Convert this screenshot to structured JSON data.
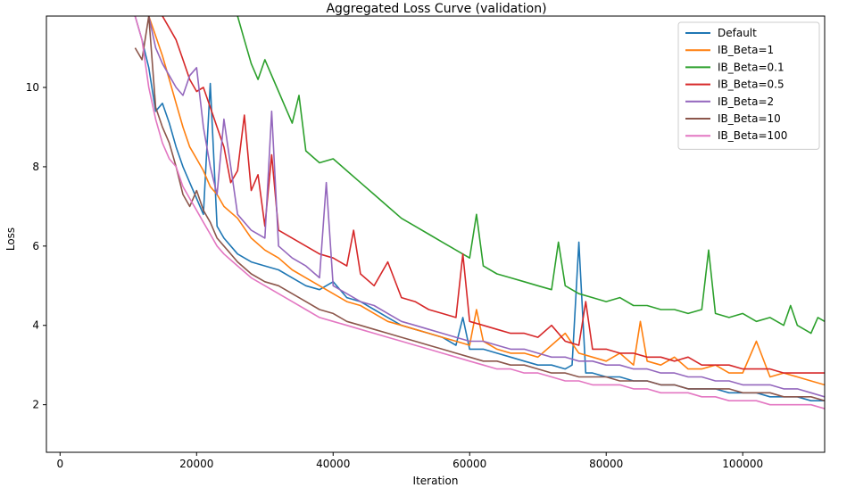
{
  "chart_data": {
    "type": "line",
    "title": "Aggregated Loss Curve (validation)",
    "xlabel": "Iteration",
    "ylabel": "Loss",
    "xlim": [
      -2000,
      112000
    ],
    "ylim": [
      0.8,
      11.8
    ],
    "xticks": [
      0,
      20000,
      40000,
      60000,
      80000,
      100000
    ],
    "yticks": [
      2,
      4,
      6,
      8,
      10
    ],
    "grid": false,
    "legend_position": "top-right",
    "series": [
      {
        "name": "Default",
        "color": "#1f77b4",
        "x": [
          11000,
          12000,
          13000,
          14000,
          15000,
          16000,
          17000,
          18000,
          19000,
          20000,
          21000,
          22000,
          23000,
          24000,
          26000,
          28000,
          30000,
          32000,
          34000,
          36000,
          38000,
          40000,
          42000,
          44000,
          46000,
          48000,
          50000,
          52000,
          54000,
          56000,
          58000,
          59000,
          60000,
          62000,
          64000,
          66000,
          68000,
          70000,
          72000,
          74000,
          75000,
          76000,
          77000,
          78000,
          80000,
          82000,
          84000,
          86000,
          88000,
          90000,
          92000,
          94000,
          96000,
          98000,
          100000,
          102000,
          104000,
          106000,
          108000,
          110000,
          112000
        ],
        "y": [
          11.8,
          11.2,
          10.5,
          9.4,
          9.6,
          9.1,
          8.5,
          8.0,
          7.6,
          7.2,
          6.8,
          10.1,
          6.5,
          6.2,
          5.8,
          5.6,
          5.5,
          5.4,
          5.2,
          5.0,
          4.9,
          5.1,
          4.7,
          4.6,
          4.4,
          4.2,
          4.0,
          3.9,
          3.8,
          3.7,
          3.5,
          4.2,
          3.4,
          3.4,
          3.3,
          3.2,
          3.1,
          3.0,
          3.0,
          2.9,
          3.0,
          6.1,
          2.8,
          2.8,
          2.7,
          2.7,
          2.6,
          2.6,
          2.5,
          2.5,
          2.4,
          2.4,
          2.4,
          2.3,
          2.3,
          2.3,
          2.2,
          2.2,
          2.2,
          2.1,
          2.1
        ]
      },
      {
        "name": "IB_Beta=1",
        "color": "#ff7f0e",
        "x": [
          13000,
          14000,
          15000,
          16000,
          17000,
          18000,
          19000,
          20000,
          21000,
          22000,
          23000,
          24000,
          26000,
          28000,
          30000,
          32000,
          34000,
          36000,
          38000,
          40000,
          42000,
          44000,
          46000,
          48000,
          50000,
          52000,
          54000,
          56000,
          58000,
          60000,
          61000,
          62000,
          64000,
          66000,
          68000,
          70000,
          72000,
          74000,
          76000,
          78000,
          80000,
          82000,
          84000,
          85000,
          86000,
          88000,
          90000,
          92000,
          94000,
          96000,
          98000,
          100000,
          102000,
          104000,
          106000,
          108000,
          110000,
          112000
        ],
        "y": [
          11.8,
          11.3,
          10.8,
          10.2,
          9.6,
          9.0,
          8.5,
          8.2,
          7.9,
          7.5,
          7.3,
          7.0,
          6.7,
          6.2,
          5.9,
          5.7,
          5.4,
          5.2,
          5.0,
          4.8,
          4.6,
          4.5,
          4.3,
          4.1,
          4.0,
          3.9,
          3.8,
          3.7,
          3.6,
          3.5,
          4.4,
          3.6,
          3.4,
          3.3,
          3.3,
          3.2,
          3.5,
          3.8,
          3.3,
          3.2,
          3.1,
          3.3,
          3.0,
          4.1,
          3.1,
          3.0,
          3.2,
          2.9,
          2.9,
          3.0,
          2.8,
          2.8,
          3.6,
          2.7,
          2.8,
          2.7,
          2.6,
          2.5
        ]
      },
      {
        "name": "IB_Beta=0.1",
        "color": "#2ca02c",
        "x": [
          26000,
          27000,
          28000,
          29000,
          30000,
          32000,
          33000,
          34000,
          35000,
          36000,
          38000,
          40000,
          42000,
          44000,
          46000,
          48000,
          50000,
          52000,
          54000,
          56000,
          58000,
          60000,
          61000,
          62000,
          64000,
          66000,
          68000,
          70000,
          72000,
          73000,
          74000,
          76000,
          78000,
          80000,
          82000,
          84000,
          86000,
          88000,
          90000,
          92000,
          94000,
          95000,
          96000,
          98000,
          100000,
          102000,
          104000,
          106000,
          107000,
          108000,
          110000,
          111000,
          112000
        ],
        "y": [
          11.8,
          11.2,
          10.6,
          10.2,
          10.7,
          9.9,
          9.5,
          9.1,
          9.8,
          8.4,
          8.1,
          8.2,
          7.9,
          7.6,
          7.3,
          7.0,
          6.7,
          6.5,
          6.3,
          6.1,
          5.9,
          5.7,
          6.8,
          5.5,
          5.3,
          5.2,
          5.1,
          5.0,
          4.9,
          6.1,
          5.0,
          4.8,
          4.7,
          4.6,
          4.7,
          4.5,
          4.5,
          4.4,
          4.4,
          4.3,
          4.4,
          5.9,
          4.3,
          4.2,
          4.3,
          4.1,
          4.2,
          4.0,
          4.5,
          4.0,
          3.8,
          4.2,
          4.1
        ]
      },
      {
        "name": "IB_Beta=0.5",
        "color": "#d62728",
        "x": [
          15000,
          16000,
          17000,
          18000,
          19000,
          20000,
          21000,
          22000,
          23000,
          24000,
          25000,
          26000,
          27000,
          28000,
          29000,
          30000,
          31000,
          32000,
          34000,
          36000,
          38000,
          40000,
          42000,
          43000,
          44000,
          46000,
          48000,
          50000,
          52000,
          54000,
          56000,
          58000,
          59000,
          60000,
          62000,
          64000,
          66000,
          68000,
          70000,
          72000,
          74000,
          76000,
          77000,
          78000,
          80000,
          82000,
          84000,
          86000,
          88000,
          90000,
          92000,
          94000,
          96000,
          98000,
          100000,
          102000,
          104000,
          106000,
          108000,
          110000,
          112000
        ],
        "y": [
          11.8,
          11.5,
          11.2,
          10.7,
          10.2,
          9.9,
          10.0,
          9.5,
          9.0,
          8.5,
          7.6,
          7.9,
          9.3,
          7.4,
          7.8,
          6.5,
          8.3,
          6.4,
          6.2,
          6.0,
          5.8,
          5.7,
          5.5,
          6.4,
          5.3,
          5.0,
          5.6,
          4.7,
          4.6,
          4.4,
          4.3,
          4.2,
          5.8,
          4.1,
          4.0,
          3.9,
          3.8,
          3.8,
          3.7,
          4.0,
          3.6,
          3.5,
          4.6,
          3.4,
          3.4,
          3.3,
          3.3,
          3.2,
          3.2,
          3.1,
          3.2,
          3.0,
          3.0,
          3.0,
          2.9,
          2.9,
          2.9,
          2.8,
          2.8,
          2.8,
          2.8
        ]
      },
      {
        "name": "IB_Beta=2",
        "color": "#9467bd",
        "x": [
          13000,
          14000,
          15000,
          16000,
          17000,
          18000,
          19000,
          20000,
          21000,
          22000,
          23000,
          24000,
          26000,
          28000,
          30000,
          31000,
          32000,
          34000,
          36000,
          38000,
          39000,
          40000,
          42000,
          44000,
          46000,
          48000,
          50000,
          52000,
          54000,
          56000,
          58000,
          60000,
          62000,
          64000,
          66000,
          68000,
          70000,
          72000,
          74000,
          76000,
          78000,
          80000,
          82000,
          84000,
          86000,
          88000,
          90000,
          92000,
          94000,
          96000,
          98000,
          100000,
          102000,
          104000,
          106000,
          108000,
          110000,
          112000
        ],
        "y": [
          11.8,
          11.0,
          10.6,
          10.3,
          10.0,
          9.8,
          10.3,
          10.5,
          9.0,
          8.0,
          7.3,
          9.2,
          6.8,
          6.4,
          6.2,
          9.4,
          6.0,
          5.7,
          5.5,
          5.2,
          7.6,
          5.0,
          4.8,
          4.6,
          4.5,
          4.3,
          4.1,
          4.0,
          3.9,
          3.8,
          3.7,
          3.6,
          3.6,
          3.5,
          3.4,
          3.4,
          3.3,
          3.2,
          3.2,
          3.1,
          3.1,
          3.0,
          3.0,
          2.9,
          2.9,
          2.8,
          2.8,
          2.7,
          2.7,
          2.6,
          2.6,
          2.5,
          2.5,
          2.5,
          2.4,
          2.4,
          2.3,
          2.2
        ]
      },
      {
        "name": "IB_Beta=10",
        "color": "#8c564b",
        "x": [
          11000,
          12000,
          13000,
          14000,
          15000,
          16000,
          17000,
          18000,
          19000,
          20000,
          21000,
          22000,
          23000,
          24000,
          26000,
          28000,
          30000,
          32000,
          34000,
          36000,
          38000,
          40000,
          42000,
          44000,
          46000,
          48000,
          50000,
          52000,
          54000,
          56000,
          58000,
          60000,
          62000,
          64000,
          66000,
          68000,
          70000,
          72000,
          74000,
          76000,
          78000,
          80000,
          82000,
          84000,
          86000,
          88000,
          90000,
          92000,
          94000,
          96000,
          98000,
          100000,
          102000,
          104000,
          106000,
          108000,
          110000,
          112000
        ],
        "y": [
          11.0,
          10.7,
          11.8,
          9.5,
          9.0,
          8.6,
          8.0,
          7.3,
          7.0,
          7.4,
          6.9,
          6.6,
          6.2,
          6.0,
          5.6,
          5.3,
          5.1,
          5.0,
          4.8,
          4.6,
          4.4,
          4.3,
          4.1,
          4.0,
          3.9,
          3.8,
          3.7,
          3.6,
          3.5,
          3.4,
          3.3,
          3.2,
          3.1,
          3.1,
          3.0,
          3.0,
          2.9,
          2.8,
          2.8,
          2.7,
          2.7,
          2.7,
          2.6,
          2.6,
          2.6,
          2.5,
          2.5,
          2.4,
          2.4,
          2.4,
          2.4,
          2.3,
          2.3,
          2.3,
          2.2,
          2.2,
          2.2,
          2.1
        ]
      },
      {
        "name": "IB_Beta=100",
        "color": "#e377c2",
        "x": [
          11000,
          12000,
          13000,
          14000,
          15000,
          16000,
          17000,
          18000,
          19000,
          20000,
          21000,
          22000,
          23000,
          24000,
          26000,
          28000,
          30000,
          32000,
          34000,
          36000,
          38000,
          40000,
          42000,
          44000,
          46000,
          48000,
          50000,
          52000,
          54000,
          56000,
          58000,
          60000,
          62000,
          64000,
          66000,
          68000,
          70000,
          72000,
          74000,
          76000,
          78000,
          80000,
          82000,
          84000,
          86000,
          88000,
          90000,
          92000,
          94000,
          96000,
          98000,
          100000,
          102000,
          104000,
          106000,
          108000,
          110000,
          112000
        ],
        "y": [
          11.8,
          11.2,
          10.0,
          9.2,
          8.6,
          8.2,
          8.0,
          7.5,
          7.2,
          6.9,
          6.6,
          6.3,
          6.0,
          5.8,
          5.5,
          5.2,
          5.0,
          4.8,
          4.6,
          4.4,
          4.2,
          4.1,
          4.0,
          3.9,
          3.8,
          3.7,
          3.6,
          3.5,
          3.4,
          3.3,
          3.2,
          3.1,
          3.0,
          2.9,
          2.9,
          2.8,
          2.8,
          2.7,
          2.6,
          2.6,
          2.5,
          2.5,
          2.5,
          2.4,
          2.4,
          2.3,
          2.3,
          2.3,
          2.2,
          2.2,
          2.1,
          2.1,
          2.1,
          2.0,
          2.0,
          2.0,
          2.0,
          1.9
        ]
      }
    ]
  }
}
